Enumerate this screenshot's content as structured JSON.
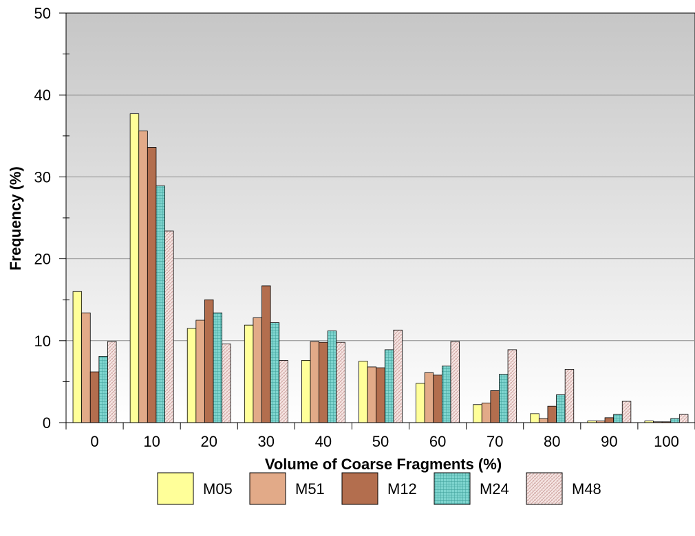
{
  "chart_data": {
    "type": "bar",
    "xlabel": "Volume of Coarse Fragments (%)",
    "ylabel": "Frequency (%)",
    "ylim": [
      0,
      50
    ],
    "yticks": [
      "0",
      "10",
      "20",
      "30",
      "40",
      "50"
    ],
    "categories": [
      "0",
      "10",
      "20",
      "30",
      "40",
      "50",
      "60",
      "70",
      "80",
      "90",
      "100"
    ],
    "grid": true,
    "legend_position": "bottom",
    "series": [
      {
        "name": "M05",
        "color": "#ffff99",
        "pattern": "solid",
        "values": [
          16.0,
          37.7,
          11.5,
          11.9,
          7.6,
          7.5,
          4.8,
          2.2,
          1.1,
          0.2,
          0.2
        ]
      },
      {
        "name": "M51",
        "color": "#e2aa88",
        "pattern": "solid",
        "values": [
          13.4,
          35.6,
          12.5,
          12.8,
          9.9,
          6.8,
          6.1,
          2.4,
          0.5,
          0.2,
          0.1
        ]
      },
      {
        "name": "M12",
        "color": "#b36e4e",
        "pattern": "solid",
        "values": [
          6.2,
          33.6,
          15.0,
          16.7,
          9.8,
          6.7,
          5.8,
          3.9,
          2.0,
          0.6,
          0.1
        ]
      },
      {
        "name": "M24",
        "color": "#7fd5cf",
        "pattern": "grid",
        "values": [
          8.1,
          28.9,
          13.4,
          12.2,
          11.2,
          8.9,
          6.9,
          5.9,
          3.4,
          1.0,
          0.5
        ]
      },
      {
        "name": "M48",
        "color": "#f7e8e6",
        "pattern": "hatch",
        "values": [
          9.9,
          23.4,
          9.6,
          7.6,
          9.8,
          11.3,
          9.9,
          8.9,
          6.5,
          2.6,
          1.0
        ]
      }
    ]
  }
}
